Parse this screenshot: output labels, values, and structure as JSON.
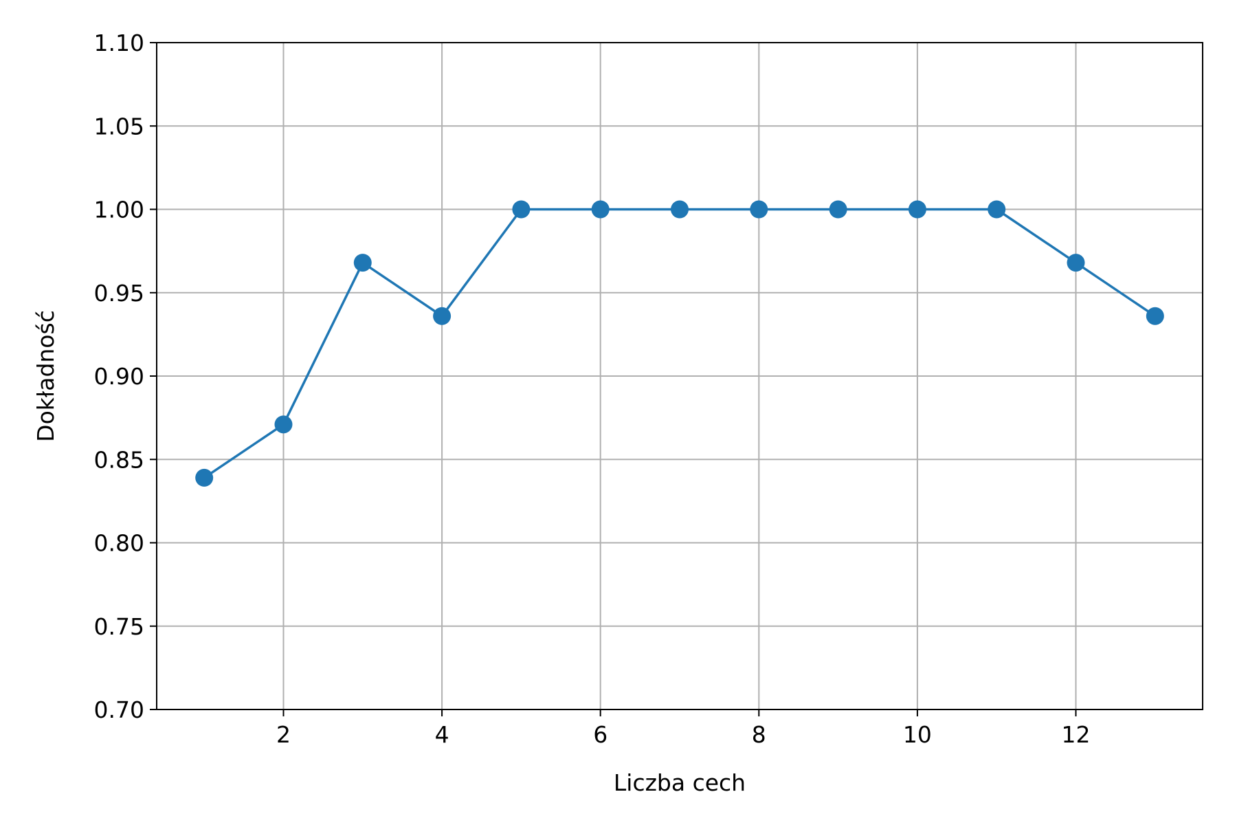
{
  "chart_data": {
    "type": "line",
    "title": "",
    "xlabel": "Liczba cech",
    "ylabel": "Dokładność",
    "xlim": [
      0.4,
      13.6
    ],
    "ylim": [
      0.7,
      1.1
    ],
    "x_ticks": [
      2,
      4,
      6,
      8,
      10,
      12
    ],
    "y_ticks": [
      0.7,
      0.75,
      0.8,
      0.85,
      0.9,
      0.95,
      1.0,
      1.05,
      1.1
    ],
    "x_tick_labels": [
      "2",
      "4",
      "6",
      "8",
      "10",
      "12"
    ],
    "y_tick_labels": [
      "0.70",
      "0.75",
      "0.80",
      "0.85",
      "0.90",
      "0.95",
      "1.00",
      "1.05",
      "1.10"
    ],
    "grid": true,
    "series": [
      {
        "color": "#1f77b4",
        "marker": "circle",
        "x": [
          1,
          2,
          3,
          4,
          5,
          6,
          7,
          8,
          9,
          10,
          11,
          12,
          13
        ],
        "y": [
          0.839,
          0.871,
          0.968,
          0.936,
          1.0,
          1.0,
          1.0,
          1.0,
          1.0,
          1.0,
          1.0,
          0.968,
          0.936
        ]
      }
    ]
  },
  "colors": {
    "line": "#1f77b4",
    "grid": "#b0b0b0",
    "axis": "#000000"
  }
}
